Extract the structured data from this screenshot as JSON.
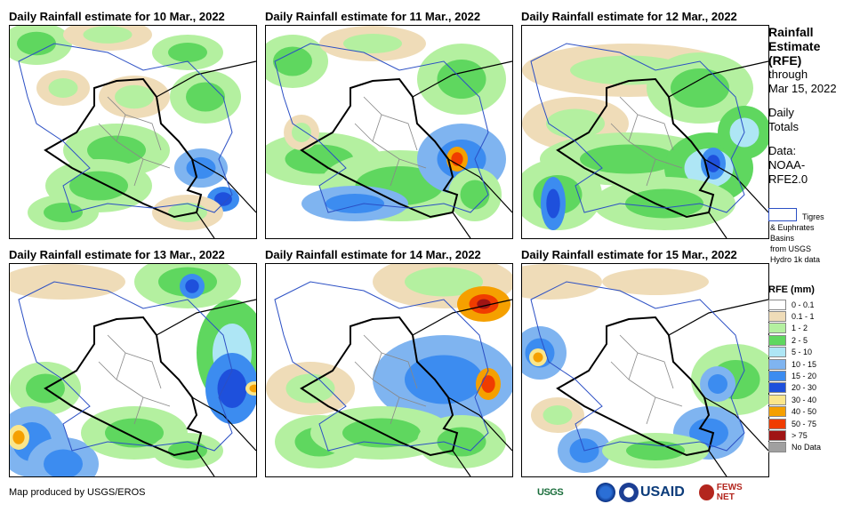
{
  "panels": [
    {
      "title": "Daily Rainfall estimate for 10 Mar., 2022"
    },
    {
      "title": "Daily Rainfall estimate for 11 Mar., 2022"
    },
    {
      "title": "Daily Rainfall estimate for 12 Mar., 2022"
    },
    {
      "title": "Daily Rainfall estimate for 13 Mar., 2022"
    },
    {
      "title": "Daily Rainfall estimate for 14 Mar., 2022"
    },
    {
      "title": "Daily Rainfall estimate for 15 Mar., 2022"
    }
  ],
  "sidebar": {
    "title_line1": "Rainfall",
    "title_line2": "Estimate",
    "title_line3": "(RFE)",
    "through": "through",
    "date": "Mar 15, 2022",
    "daily": "Daily",
    "totals": "Totals",
    "data_label": "Data:",
    "data_source1": "NOAA-",
    "data_source2": "RFE2.0",
    "basin_line1": "Tigres",
    "basin_line2": "& Euphrates",
    "basin_line3": "Basins",
    "basin_line4": "from USGS",
    "basin_line5": "Hydro 1k data"
  },
  "legend": {
    "title": "RFE (mm)",
    "items": [
      {
        "label": "0 - 0.1",
        "color": "#ffffff"
      },
      {
        "label": "0.1 - 1",
        "color": "#efdcb8"
      },
      {
        "label": "1 - 2",
        "color": "#b4f0a0"
      },
      {
        "label": "2 - 5",
        "color": "#5fd75f"
      },
      {
        "label": "5 - 10",
        "color": "#aee6f5"
      },
      {
        "label": "10 - 15",
        "color": "#7fb4f0"
      },
      {
        "label": "15 - 20",
        "color": "#3c8cf0"
      },
      {
        "label": "20 - 30",
        "color": "#1e50dc"
      },
      {
        "label": "30 - 40",
        "color": "#fae68c"
      },
      {
        "label": "40 - 50",
        "color": "#f5a000"
      },
      {
        "label": "50 - 75",
        "color": "#f03c00"
      },
      {
        "label": "> 75",
        "color": "#a01414"
      },
      {
        "label": "No Data",
        "color": "#a0a0a0"
      }
    ]
  },
  "footer": {
    "credit": "Map produced by USGS/EROS"
  },
  "logos": {
    "usgs": "USGS",
    "usaid": "USAID",
    "fews": "FEWS NET"
  }
}
